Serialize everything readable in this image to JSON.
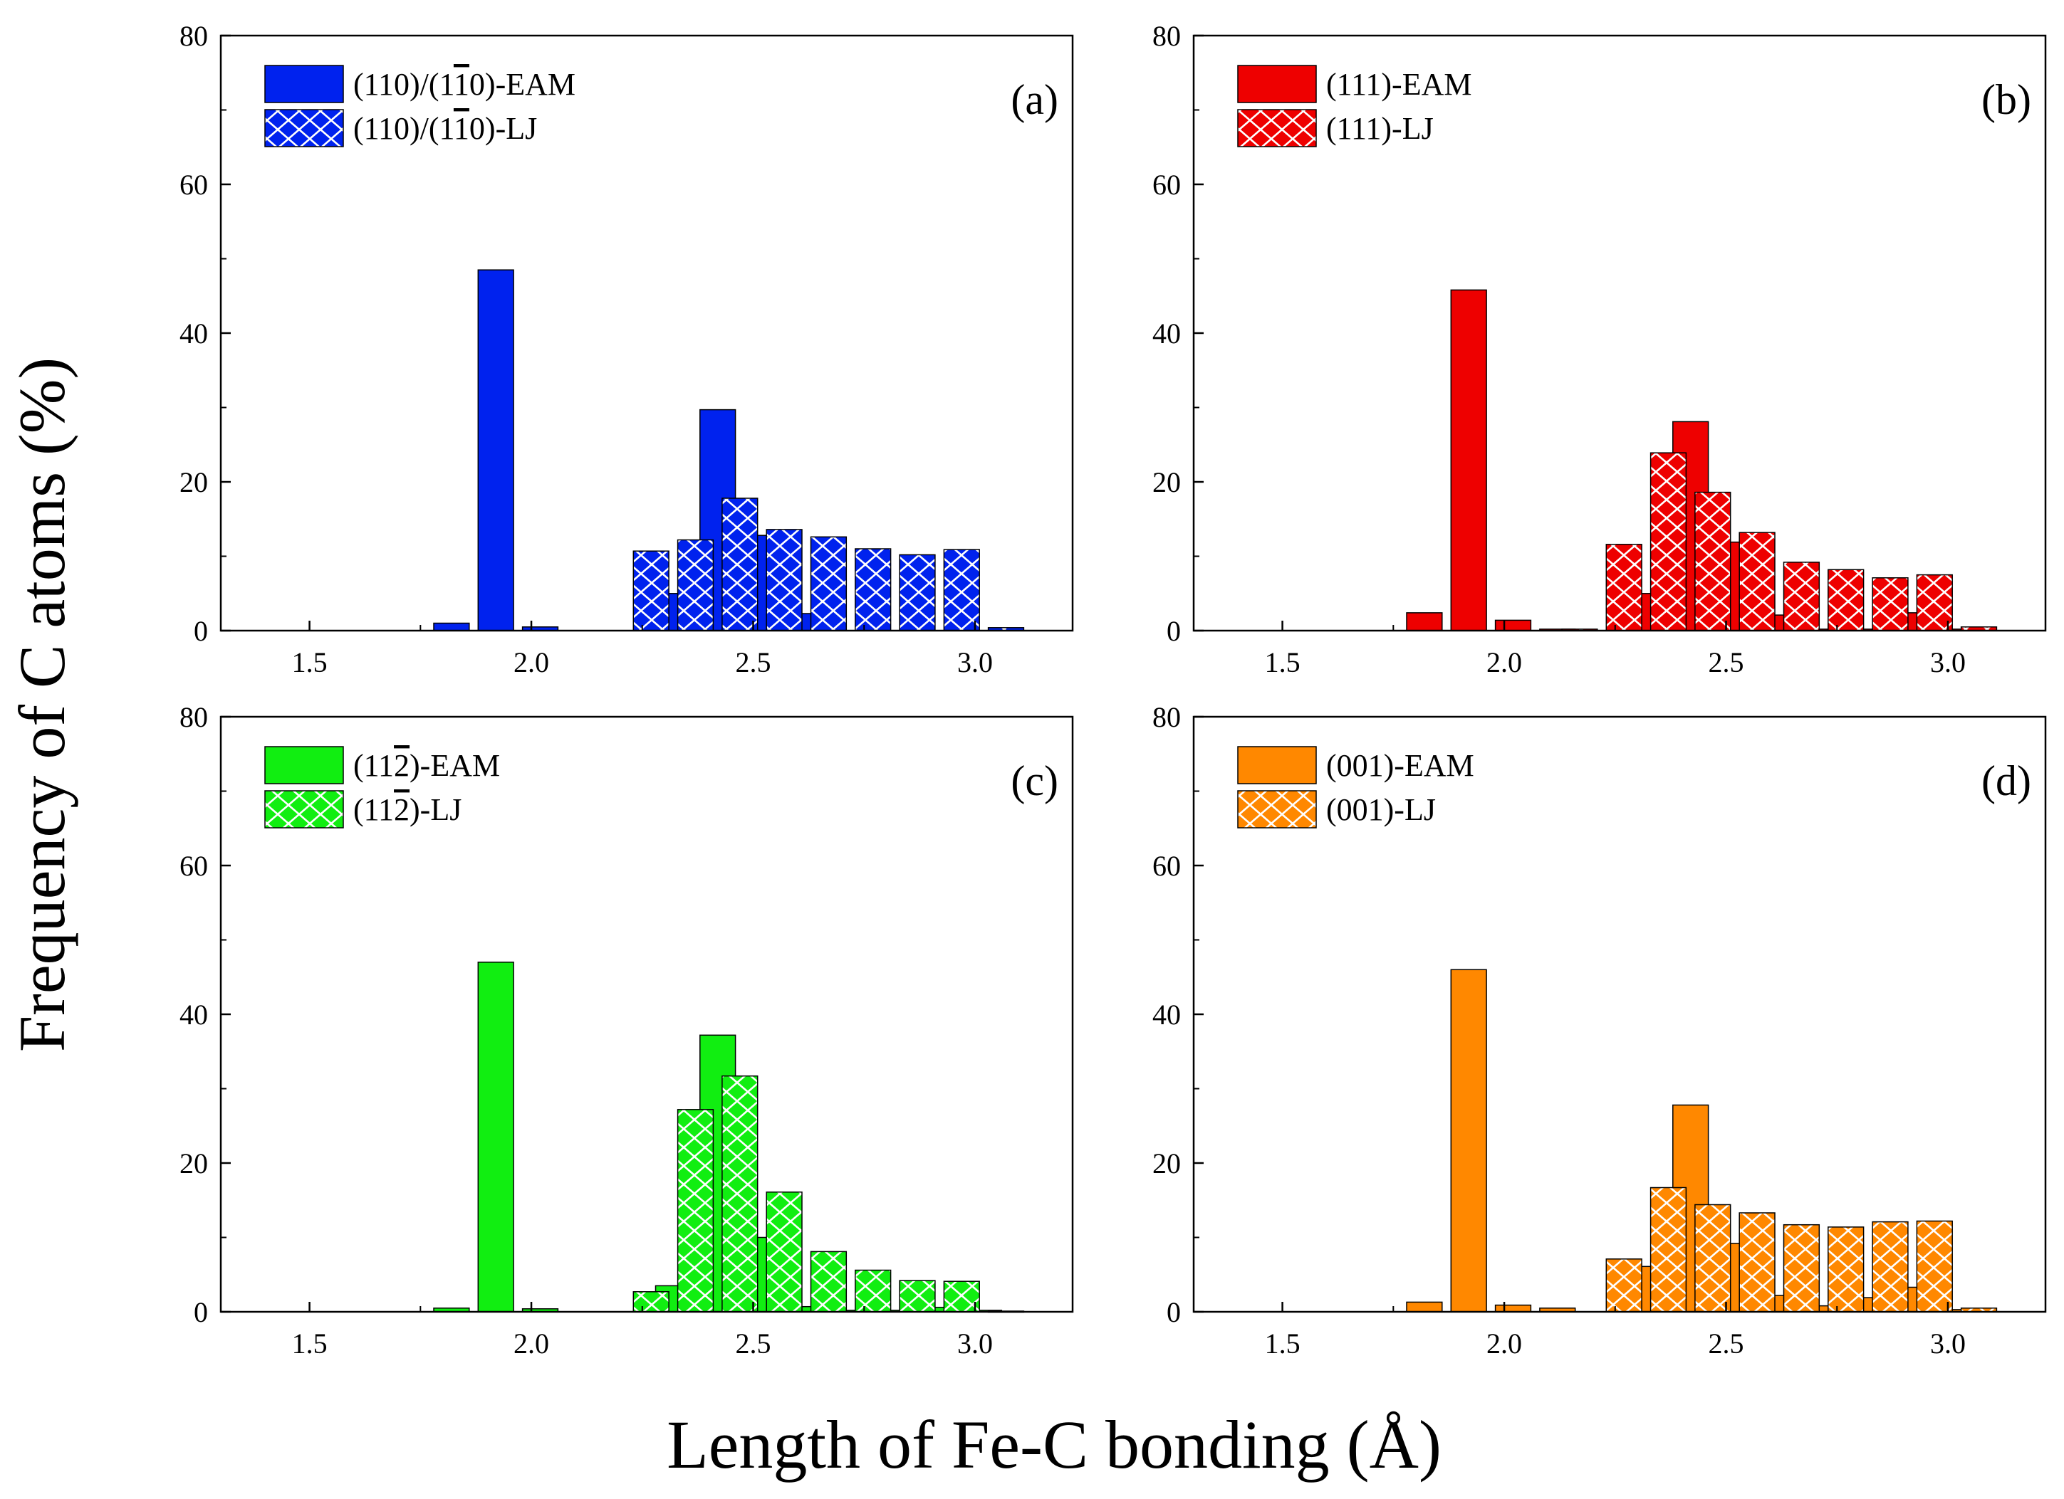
{
  "figure": {
    "ylabel": "Frequency of C atoms (%)",
    "xlabel": "Length of Fe-C bonding (Å)"
  },
  "chart_data": [
    {
      "type": "bar",
      "panel": "(a)",
      "color": "#0022ee",
      "xlim": [
        1.3,
        3.22
      ],
      "ylim": [
        0,
        80
      ],
      "xticks": [
        "1.5",
        "2.0",
        "2.5",
        "3.0"
      ],
      "yticks": [
        "0",
        "20",
        "40",
        "60",
        "80"
      ],
      "series": [
        {
          "name": "(110)/(1-10)-EAM",
          "legend": {
            "pre": "(110)/(1",
            "bar": "1",
            "post": "0)-EAM"
          },
          "hatch": false,
          "x": [
            1.82,
            1.92,
            2.02,
            2.12,
            2.22,
            2.32,
            2.42,
            2.52,
            2.62,
            2.72,
            2.82,
            2.92,
            3.02
          ],
          "values": [
            1.0,
            48.5,
            0.5,
            0,
            0,
            5.0,
            29.7,
            12.8,
            2.3,
            0,
            0,
            0,
            0
          ]
        },
        {
          "name": "(110)/(1-10)-LJ",
          "legend": {
            "pre": "(110)/(1",
            "bar": "1",
            "post": "0)-LJ"
          },
          "hatch": true,
          "x": [
            1.87,
            1.97,
            2.07,
            2.17,
            2.27,
            2.37,
            2.47,
            2.57,
            2.67,
            2.77,
            2.87,
            2.97,
            3.07
          ],
          "values": [
            0,
            0,
            0,
            0,
            10.7,
            12.2,
            17.8,
            13.6,
            12.6,
            11.0,
            10.2,
            10.9,
            0.4
          ]
        }
      ]
    },
    {
      "type": "bar",
      "panel": "(b)",
      "color": "#ee0000",
      "xlim": [
        1.3,
        3.22
      ],
      "ylim": [
        0,
        80
      ],
      "xticks": [
        "1.5",
        "2.0",
        "2.5",
        "3.0"
      ],
      "yticks": [
        "0",
        "20",
        "40",
        "60",
        "80"
      ],
      "series": [
        {
          "name": "(111)-EAM",
          "legend": {
            "pre": "(111)-EAM",
            "bar": "",
            "post": ""
          },
          "hatch": false,
          "x": [
            1.82,
            1.92,
            2.02,
            2.12,
            2.22,
            2.32,
            2.42,
            2.52,
            2.62,
            2.72,
            2.82,
            2.92,
            3.02
          ],
          "values": [
            2.4,
            45.8,
            1.4,
            0.2,
            0,
            5.0,
            28.1,
            11.9,
            2.1,
            0.2,
            0.2,
            2.4,
            0.2
          ]
        },
        {
          "name": "(111)-LJ",
          "legend": {
            "pre": "(111)-LJ",
            "bar": "",
            "post": ""
          },
          "hatch": true,
          "x": [
            1.87,
            1.97,
            2.07,
            2.17,
            2.27,
            2.37,
            2.47,
            2.57,
            2.67,
            2.77,
            2.87,
            2.97,
            3.07
          ],
          "values": [
            0,
            0,
            0,
            0.2,
            11.6,
            23.9,
            18.6,
            13.2,
            9.2,
            8.2,
            7.1,
            7.5,
            0.5
          ]
        }
      ]
    },
    {
      "type": "bar",
      "panel": "(c)",
      "color": "#11ee11",
      "xlim": [
        1.3,
        3.22
      ],
      "ylim": [
        0,
        80
      ],
      "xticks": [
        "1.5",
        "2.0",
        "2.5",
        "3.0"
      ],
      "yticks": [
        "0",
        "20",
        "40",
        "60",
        "80"
      ],
      "series": [
        {
          "name": "(11-2)-EAM",
          "legend": {
            "pre": "(11",
            "bar": "2",
            "post": ")-EAM"
          },
          "hatch": false,
          "x": [
            1.82,
            1.92,
            2.02,
            2.12,
            2.22,
            2.32,
            2.42,
            2.52,
            2.62,
            2.72,
            2.82,
            2.92,
            3.02
          ],
          "values": [
            0.5,
            47.0,
            0.4,
            0,
            0,
            3.5,
            37.2,
            10.0,
            0.7,
            0.2,
            0.2,
            0.6,
            0.2
          ]
        },
        {
          "name": "(11-2)-LJ",
          "legend": {
            "pre": "(11",
            "bar": "2",
            "post": ")-LJ"
          },
          "hatch": true,
          "x": [
            1.87,
            1.97,
            2.07,
            2.17,
            2.27,
            2.37,
            2.47,
            2.57,
            2.67,
            2.77,
            2.87,
            2.97,
            3.07
          ],
          "values": [
            0,
            0,
            0,
            0,
            2.7,
            27.2,
            31.7,
            16.1,
            8.1,
            5.6,
            4.2,
            4.1,
            0.1
          ]
        }
      ]
    },
    {
      "type": "bar",
      "panel": "(d)",
      "color": "#ff8800",
      "xlim": [
        1.3,
        3.22
      ],
      "ylim": [
        0,
        80
      ],
      "xticks": [
        "1.5",
        "2.0",
        "2.5",
        "3.0"
      ],
      "yticks": [
        "0",
        "20",
        "40",
        "60",
        "80"
      ],
      "series": [
        {
          "name": "(001)-EAM",
          "legend": {
            "pre": "(001)-EAM",
            "bar": "",
            "post": ""
          },
          "hatch": false,
          "x": [
            1.82,
            1.92,
            2.02,
            2.12,
            2.22,
            2.32,
            2.42,
            2.52,
            2.62,
            2.72,
            2.82,
            2.92,
            3.02
          ],
          "values": [
            1.3,
            46.0,
            0.9,
            0.5,
            0,
            6.1,
            27.8,
            9.2,
            2.2,
            0.8,
            1.9,
            3.3,
            0.3
          ]
        },
        {
          "name": "(001)-LJ",
          "legend": {
            "pre": "(001)-LJ",
            "bar": "",
            "post": ""
          },
          "hatch": true,
          "x": [
            1.87,
            1.97,
            2.07,
            2.17,
            2.27,
            2.37,
            2.47,
            2.57,
            2.67,
            2.77,
            2.87,
            2.97,
            3.07
          ],
          "values": [
            0,
            0,
            0,
            0,
            7.1,
            16.7,
            14.4,
            13.3,
            11.7,
            11.4,
            12.1,
            12.2,
            0.5
          ]
        }
      ]
    }
  ]
}
